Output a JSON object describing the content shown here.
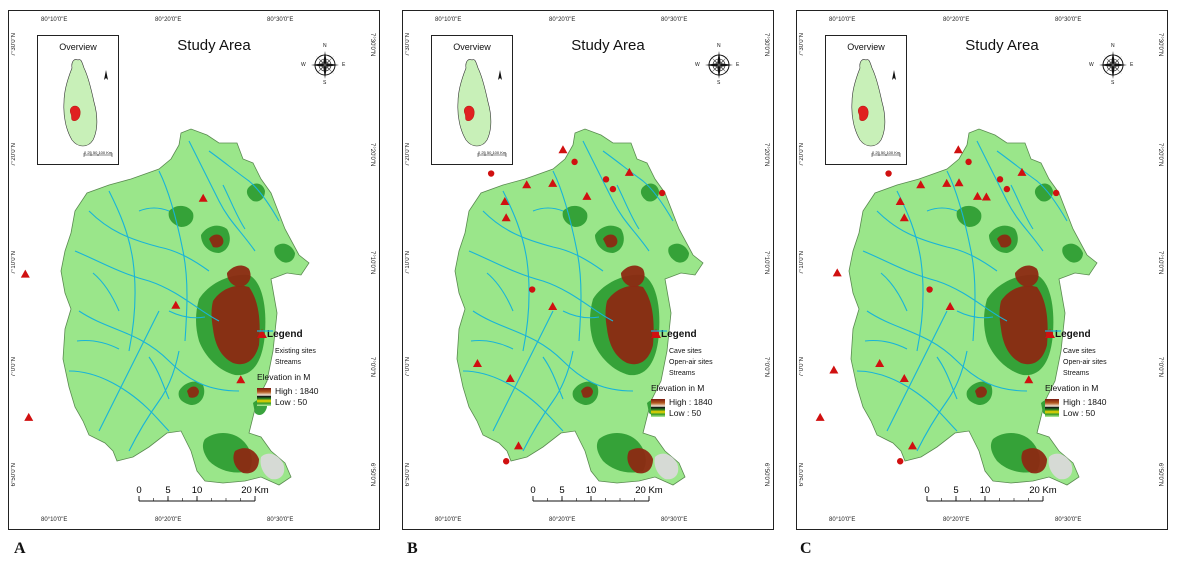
{
  "panels": [
    {
      "label": "A",
      "title": "Study Area",
      "overview_title": "Overview",
      "overview_scale": "0  25  50        100 Km",
      "legend": {
        "title": "Legend",
        "items": [
          {
            "symbol": "triangle",
            "label": "Existing sites"
          },
          {
            "symbol": "line",
            "label": "Streams"
          }
        ],
        "elevation_title": "Elevation in M",
        "high": "High : 1840",
        "low": "Low :  50"
      },
      "sites": [
        {
          "type": "cave",
          "lon": 80.395,
          "lat": 7.275
        },
        {
          "type": "cave",
          "lon": 80.135,
          "lat": 7.158
        },
        {
          "type": "cave",
          "lon": 80.355,
          "lat": 7.11
        },
        {
          "type": "cave",
          "lon": 80.45,
          "lat": 6.995
        },
        {
          "type": "cave",
          "lon": 80.14,
          "lat": 6.937
        }
      ]
    },
    {
      "label": "B",
      "title": "Study Area",
      "overview_title": "Overview",
      "overview_scale": "0  25  50        100 Km",
      "legend": {
        "title": "Legend",
        "items": [
          {
            "symbol": "triangle",
            "label": "Cave sites"
          },
          {
            "symbol": "circle",
            "label": "Open-air sites"
          },
          {
            "symbol": "line",
            "label": "Streams"
          }
        ],
        "elevation_title": "Elevation in M",
        "high": "High : 1840",
        "low": "Low :  50"
      },
      "sites": [
        {
          "type": "cave",
          "lon": 80.345,
          "lat": 7.35
        },
        {
          "type": "open",
          "lon": 80.362,
          "lat": 7.332
        },
        {
          "type": "open",
          "lon": 80.24,
          "lat": 7.314
        },
        {
          "type": "open",
          "lon": 80.408,
          "lat": 7.305
        },
        {
          "type": "cave",
          "lon": 80.442,
          "lat": 7.315
        },
        {
          "type": "cave",
          "lon": 80.292,
          "lat": 7.296
        },
        {
          "type": "cave",
          "lon": 80.33,
          "lat": 7.298
        },
        {
          "type": "open",
          "lon": 80.418,
          "lat": 7.29
        },
        {
          "type": "open",
          "lon": 80.49,
          "lat": 7.284
        },
        {
          "type": "cave",
          "lon": 80.26,
          "lat": 7.27
        },
        {
          "type": "cave",
          "lon": 80.38,
          "lat": 7.278
        },
        {
          "type": "cave",
          "lon": 80.262,
          "lat": 7.245
        },
        {
          "type": "open",
          "lon": 80.3,
          "lat": 7.135
        },
        {
          "type": "cave",
          "lon": 80.33,
          "lat": 7.108
        },
        {
          "type": "cave",
          "lon": 80.22,
          "lat": 7.02
        },
        {
          "type": "cave",
          "lon": 80.268,
          "lat": 6.997
        },
        {
          "type": "cave",
          "lon": 80.28,
          "lat": 6.893
        },
        {
          "type": "open",
          "lon": 80.262,
          "lat": 6.87
        }
      ]
    },
    {
      "label": "C",
      "title": "Study Area",
      "overview_title": "Overview",
      "overview_scale": "0  25  50        100 Km",
      "legend": {
        "title": "Legend",
        "items": [
          {
            "symbol": "triangle",
            "label": "Cave sites"
          },
          {
            "symbol": "circle",
            "label": "Open-air sites"
          },
          {
            "symbol": "line",
            "label": "Streams"
          }
        ],
        "elevation_title": "Elevation in M",
        "high": "High : 1840",
        "low": "Low :  50"
      },
      "sites": [
        {
          "type": "cave",
          "lon": 80.347,
          "lat": 7.35
        },
        {
          "type": "open",
          "lon": 80.362,
          "lat": 7.332
        },
        {
          "type": "open",
          "lon": 80.245,
          "lat": 7.314
        },
        {
          "type": "open",
          "lon": 80.408,
          "lat": 7.305
        },
        {
          "type": "cave",
          "lon": 80.44,
          "lat": 7.315
        },
        {
          "type": "cave",
          "lon": 80.292,
          "lat": 7.296
        },
        {
          "type": "cave",
          "lon": 80.33,
          "lat": 7.298
        },
        {
          "type": "cave",
          "lon": 80.348,
          "lat": 7.299
        },
        {
          "type": "open",
          "lon": 80.418,
          "lat": 7.29
        },
        {
          "type": "open",
          "lon": 80.49,
          "lat": 7.284
        },
        {
          "type": "cave",
          "lon": 80.262,
          "lat": 7.27
        },
        {
          "type": "cave",
          "lon": 80.375,
          "lat": 7.278
        },
        {
          "type": "cave",
          "lon": 80.388,
          "lat": 7.277
        },
        {
          "type": "cave",
          "lon": 80.268,
          "lat": 7.245
        },
        {
          "type": "cave",
          "lon": 80.17,
          "lat": 7.16
        },
        {
          "type": "open",
          "lon": 80.305,
          "lat": 7.135
        },
        {
          "type": "cave",
          "lon": 80.335,
          "lat": 7.108
        },
        {
          "type": "cave",
          "lon": 80.232,
          "lat": 7.02
        },
        {
          "type": "cave",
          "lon": 80.165,
          "lat": 7.01
        },
        {
          "type": "cave",
          "lon": 80.268,
          "lat": 6.997
        },
        {
          "type": "cave",
          "lon": 80.45,
          "lat": 6.995
        },
        {
          "type": "cave",
          "lon": 80.145,
          "lat": 6.937
        },
        {
          "type": "cave",
          "lon": 80.28,
          "lat": 6.893
        },
        {
          "type": "open",
          "lon": 80.262,
          "lat": 6.87
        }
      ]
    }
  ],
  "axes": {
    "lon_ticks": [
      "80°10'0\"E",
      "80°20'0\"E",
      "80°30'0\"E"
    ],
    "lat_ticks": [
      "7°30'0\"N",
      "7°20'0\"N",
      "7°10'0\"N",
      "7°0'0\"N",
      "6°50'0\"N"
    ]
  },
  "scalebar": {
    "labels": [
      "0",
      "5",
      "10",
      "20 Km"
    ],
    "values": [
      0,
      5,
      10,
      20
    ]
  },
  "compass": {
    "n": "N",
    "s": "S",
    "e": "E",
    "w": "W"
  },
  "colors": {
    "site": "#d01010",
    "stream": "#19b4d8",
    "lowland": "#9ae68a",
    "midland": "#2f9e34",
    "highland": "#8c2a12",
    "peak": "#d9d9d9",
    "overview_land": "#c8f0b8",
    "overview_study_area": "#e02020"
  }
}
